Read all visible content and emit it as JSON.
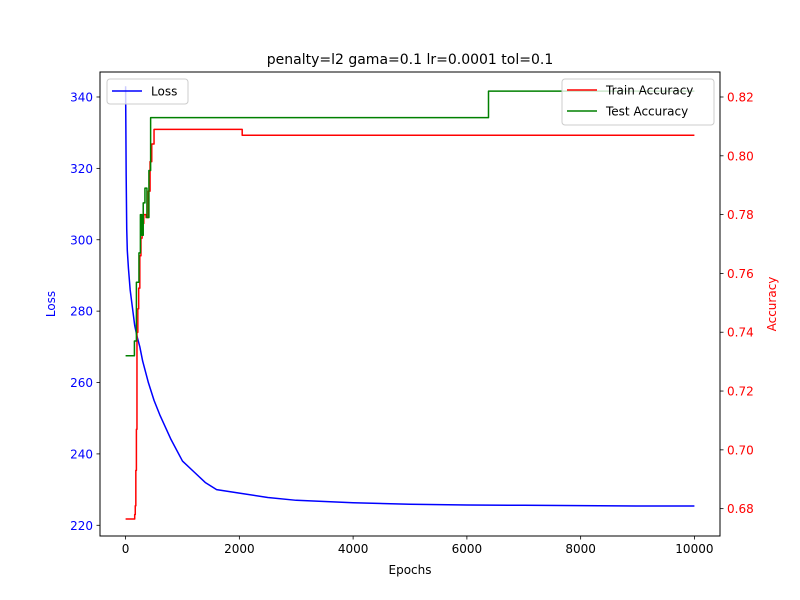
{
  "chart_data": {
    "type": "line",
    "title": "penalty=l2 gama=0.1 lr=0.0001 tol=0.1",
    "xlabel": "Epochs",
    "ylabel_left": "Loss",
    "ylabel_right": "Accuracy",
    "xlim": [
      -450,
      10450
    ],
    "ylim_left": [
      217,
      347
    ],
    "ylim_right": [
      0.6707,
      0.8285
    ],
    "x_ticks": [
      0,
      2000,
      4000,
      6000,
      8000,
      10000
    ],
    "x_tick_labels": [
      "0",
      "2000",
      "4000",
      "6000",
      "8000",
      "10000"
    ],
    "y_left_ticks": [
      220,
      240,
      260,
      280,
      300,
      320,
      340
    ],
    "y_left_tick_labels": [
      "220",
      "240",
      "260",
      "280",
      "300",
      "320",
      "340"
    ],
    "y_right_ticks": [
      0.68,
      0.7,
      0.72,
      0.74,
      0.76,
      0.78,
      0.8,
      0.82
    ],
    "y_right_tick_labels": [
      "0.68",
      "0.70",
      "0.72",
      "0.74",
      "0.76",
      "0.78",
      "0.80",
      "0.82"
    ],
    "grid": false,
    "colors": {
      "loss": "#0000ff",
      "train": "#ff0000",
      "test": "#008000",
      "axis_left": "#0000ff",
      "axis_right": "#ff0000"
    },
    "legend_left": {
      "position": "upper-left",
      "entries": [
        "Loss"
      ]
    },
    "legend_right": {
      "position": "upper-right",
      "entries": [
        "Train Accuracy",
        "Test Accuracy"
      ]
    },
    "series": [
      {
        "name": "Loss",
        "axis": "left",
        "x": [
          0,
          10,
          20,
          30,
          50,
          80,
          120,
          160,
          200,
          250,
          300,
          400,
          500,
          600,
          800,
          1000,
          1200,
          1400,
          1600,
          1800,
          2000,
          2500,
          3000,
          4000,
          5000,
          6000,
          7000,
          8000,
          9000,
          10000
        ],
        "y": [
          343,
          318,
          303,
          297,
          292,
          286,
          281,
          276,
          273,
          270,
          266,
          260,
          255,
          251,
          244,
          238,
          235,
          232,
          230,
          229.5,
          229,
          227.8,
          227,
          226.3,
          225.9,
          225.7,
          225.6,
          225.5,
          225.4,
          225.4
        ]
      },
      {
        "name": "Train Accuracy",
        "axis": "right",
        "step": true,
        "x": [
          0,
          150,
          160,
          170,
          180,
          190,
          200,
          215,
          230,
          250,
          270,
          290,
          320,
          360,
          400,
          430,
          460,
          500,
          2050,
          10000
        ],
        "y": [
          0.6765,
          0.6765,
          0.678,
          0.681,
          0.693,
          0.707,
          0.74,
          0.748,
          0.755,
          0.766,
          0.772,
          0.777,
          0.78,
          0.779,
          0.788,
          0.798,
          0.804,
          0.809,
          0.807,
          0.807
        ]
      },
      {
        "name": "Test Accuracy",
        "axis": "right",
        "step": true,
        "x": [
          0,
          130,
          155,
          190,
          210,
          235,
          260,
          285,
          310,
          340,
          375,
          410,
          440,
          460,
          6380,
          10000
        ],
        "y": [
          0.732,
          0.732,
          0.737,
          0.757,
          0.757,
          0.767,
          0.78,
          0.773,
          0.784,
          0.789,
          0.779,
          0.795,
          0.813,
          0.813,
          0.822,
          0.822
        ]
      }
    ]
  }
}
